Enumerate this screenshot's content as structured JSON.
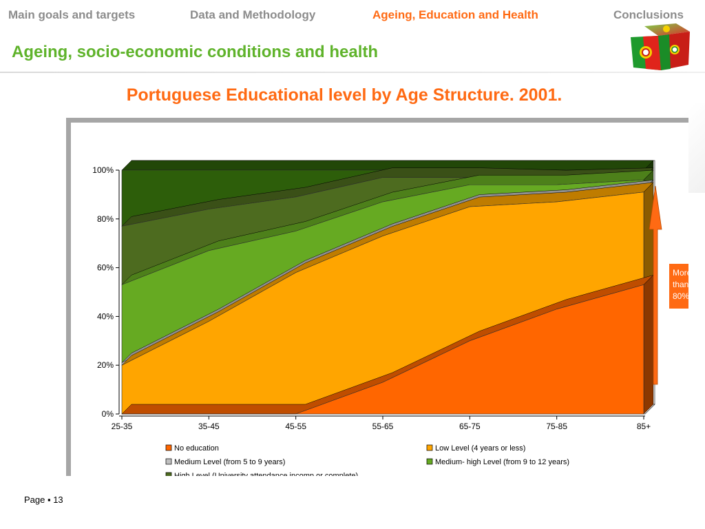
{
  "nav": {
    "items": [
      {
        "label": "Main goals and targets",
        "active": false
      },
      {
        "label": "Data and Methodology",
        "active": false
      },
      {
        "label": "Ageing, Education and Health",
        "active": true
      },
      {
        "label": "Conclusions",
        "active": false
      }
    ]
  },
  "header": {
    "title": "Ageing, socio-economic conditions and health",
    "logo_icon": "portugal-flag-cube-icon"
  },
  "chart_heading": "Portuguese Educational level by Age Structure. 2001.",
  "annotation": {
    "text_lines": [
      "More",
      "than",
      "80%"
    ],
    "arrow_icon": "up-arrow-icon",
    "color": "#ff6a13"
  },
  "footer": {
    "page_label": "Page ▪ 13"
  },
  "colors": {
    "accent_orange": "#ff6a13",
    "title_green": "#5fb32b",
    "nav_grey": "#8c8c8c"
  },
  "chart_data": {
    "type": "area",
    "stacked_percent": true,
    "three_d": true,
    "categories": [
      "25-35",
      "35-45",
      "45-55",
      "55-65",
      "65-75",
      "75-85",
      "85+"
    ],
    "y_ticks": [
      "0%",
      "20%",
      "40%",
      "60%",
      "80%",
      "100%"
    ],
    "ylim": [
      0,
      100
    ],
    "legend_position": "bottom",
    "series": [
      {
        "name": "No education",
        "color": "#ff6600",
        "values": [
          0,
          0,
          0,
          13,
          30,
          43,
          53
        ]
      },
      {
        "name": "Low  Level (4 years or less)",
        "color": "#ffa500",
        "values": [
          20,
          38,
          58,
          60,
          55,
          44,
          38
        ]
      },
      {
        "name": "Medium Level (from 5 to 9 years)",
        "color": "#c0c0c0",
        "values": [
          1,
          1,
          1,
          1,
          1,
          1,
          1
        ]
      },
      {
        "name": "Medium- high Level (from 9 to 12 years)",
        "color": "#66aa22",
        "values": [
          32,
          28,
          16,
          13,
          8,
          6,
          4
        ]
      },
      {
        "name": "High Level (University attendance incomp or complete)",
        "color": "#4d6b1f",
        "values": [
          24,
          17,
          14,
          10,
          3,
          2,
          1
        ]
      },
      {
        "name": "",
        "color": "#2d5e0a",
        "values": [
          23,
          16,
          11,
          3,
          3,
          4,
          3
        ]
      }
    ]
  }
}
